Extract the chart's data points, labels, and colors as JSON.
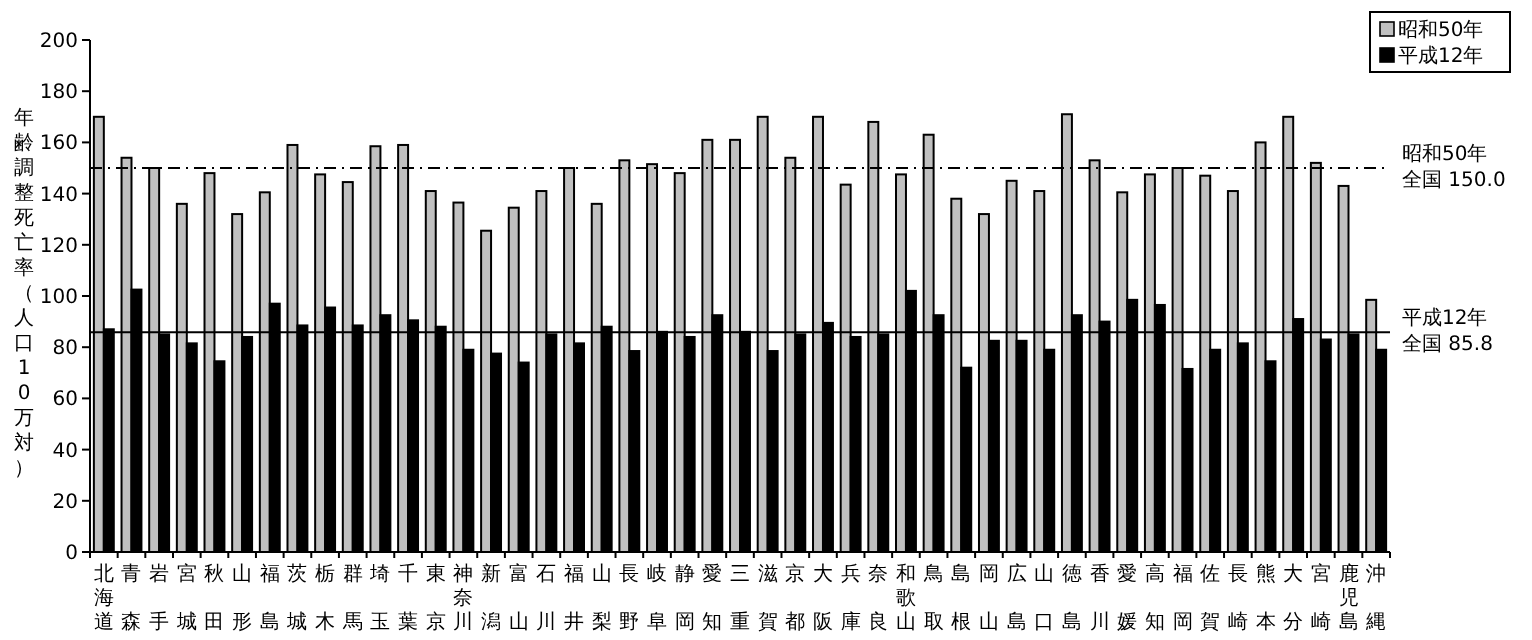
{
  "chart_data": {
    "type": "bar",
    "ylabel": "年齢調整死亡率（人口10万対）",
    "categories": [
      "北海道",
      "青森",
      "岩手",
      "宮城",
      "秋田",
      "山形",
      "福島",
      "茨城",
      "栃木",
      "群馬",
      "埼玉",
      "千葉",
      "東京",
      "神奈川",
      "新潟",
      "富山",
      "石川",
      "福井",
      "山梨",
      "長野",
      "岐阜",
      "静岡",
      "愛知",
      "三重",
      "滋賀",
      "京都",
      "大阪",
      "兵庫",
      "奈良",
      "和歌山",
      "鳥取",
      "島根",
      "岡山",
      "広島",
      "山口",
      "徳島",
      "香川",
      "愛媛",
      "高知",
      "福岡",
      "佐賀",
      "長崎",
      "熊本",
      "大分",
      "宮崎",
      "鹿児島",
      "沖縄"
    ],
    "series": [
      {
        "name": "昭和50年",
        "color": "#c0c0c0",
        "values": [
          170,
          154,
          150,
          136,
          148,
          132,
          140.5,
          159,
          147.5,
          144.5,
          158.5,
          159,
          141,
          136.5,
          125.5,
          134.5,
          141,
          150,
          136,
          153,
          151.5,
          148,
          161,
          161,
          170,
          154,
          170,
          143.5,
          168,
          147.5,
          163,
          138,
          132,
          145,
          141,
          171,
          153,
          140.5,
          147.5,
          150,
          147,
          141,
          160,
          170,
          152,
          143,
          98.5
        ]
      },
      {
        "name": "平成12年",
        "color": "#000000",
        "values": [
          87,
          102.5,
          85,
          81.5,
          74.5,
          84,
          97,
          88.5,
          95.5,
          88.5,
          92.5,
          90.5,
          88,
          79,
          77.5,
          74,
          85,
          81.5,
          88,
          78.5,
          86,
          84,
          92.5,
          86,
          78.5,
          85,
          89.5,
          84,
          85,
          102,
          92.5,
          72,
          82.5,
          82.5,
          79,
          92.5,
          90,
          98.5,
          96.5,
          71.5,
          79,
          81.5,
          74.5,
          91,
          83,
          85,
          79
        ]
      }
    ],
    "ylim": [
      0,
      200
    ],
    "yticks": [
      0,
      20,
      40,
      60,
      80,
      100,
      120,
      140,
      160,
      180,
      200
    ],
    "ref_lines": [
      {
        "axis": "y",
        "value": 150,
        "label": "昭和50年全国 150.0",
        "line_style": "dashed"
      },
      {
        "axis": "y",
        "value": 85.8,
        "label": "平成12年全国 85.8",
        "line_style": "solid"
      }
    ],
    "grid": false,
    "legend": "top right"
  }
}
